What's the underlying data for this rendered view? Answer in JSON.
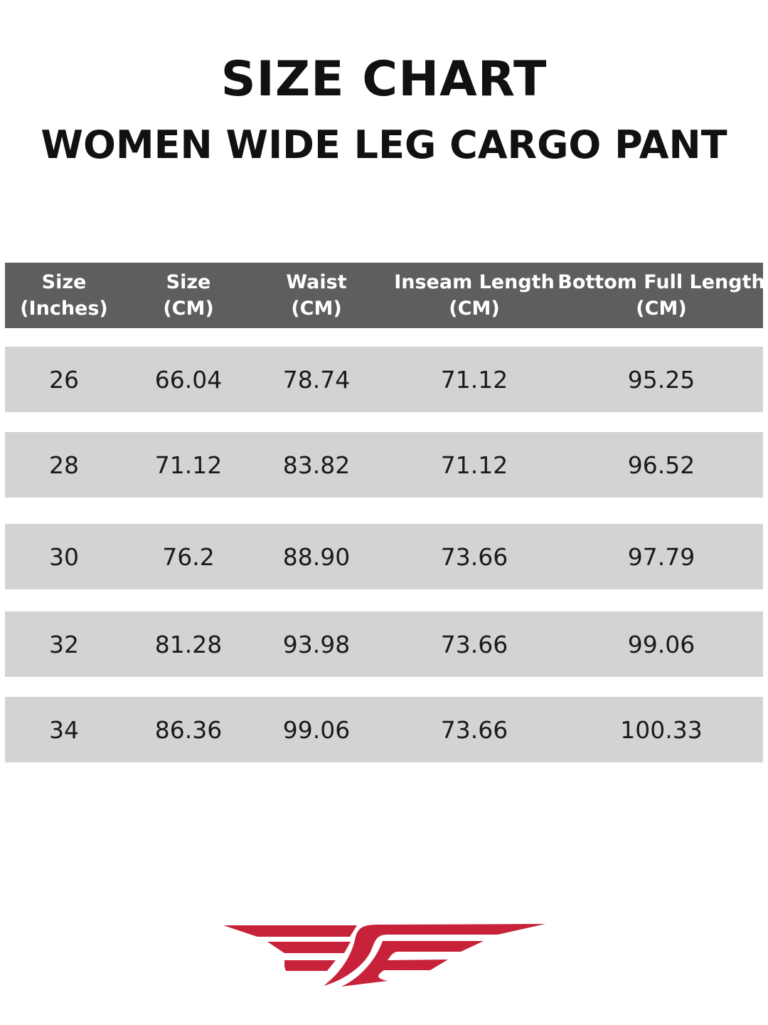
{
  "title": "SIZE CHART",
  "subtitle": "WOMEN WIDE LEG CARGO PANT",
  "table": {
    "headers": [
      [
        "Size",
        "(Inches)"
      ],
      [
        "Size",
        "(CM)"
      ],
      [
        "Waist",
        "(CM)"
      ],
      [
        "Inseam Length",
        "(CM)"
      ],
      [
        "Bottom Full Length",
        "(CM)"
      ]
    ],
    "rows": [
      [
        "26",
        "66.04",
        "78.74",
        "71.12",
        "95.25"
      ],
      [
        "28",
        "71.12",
        "83.82",
        "71.12",
        "96.52"
      ],
      [
        "30",
        "76.2",
        "88.90",
        "73.66",
        "97.79"
      ],
      [
        "32",
        "81.28",
        "93.98",
        "73.66",
        "99.06"
      ],
      [
        "34",
        "86.36",
        "99.06",
        "73.66",
        "100.33"
      ]
    ]
  },
  "colors": {
    "header_bg": "#5f5d5e",
    "row_bg": "#d3d3d3",
    "logo": "#c8213a"
  },
  "logo": {
    "icon": "winged-logo-icon"
  }
}
